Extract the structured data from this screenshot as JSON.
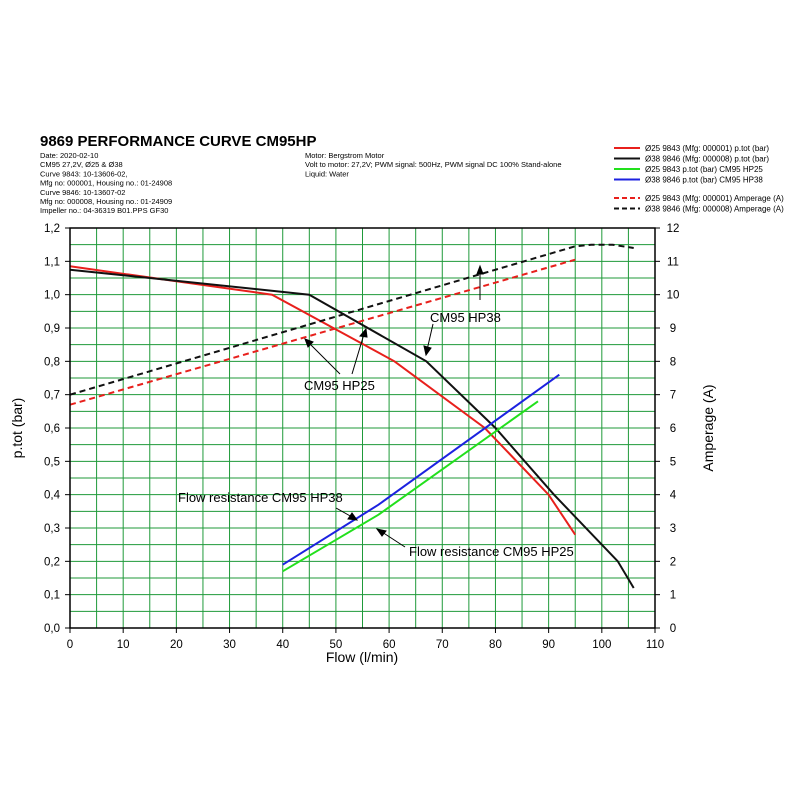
{
  "chart_data": {
    "type": "line",
    "title": "9869 PERFORMANCE CURVE CM95HP",
    "info_left": [
      "Date: 2020-02-10",
      "CM95 27,2V, Ø25 & Ø38",
      "Curve 9843: 10-13606-02,",
      "Mfg no: 000001, Housing no.: 01-24908",
      "Curve 9846: 10-13607-02",
      "Mfg no: 000008, Housing no.: 01-24909",
      "Impeller no.: 04-36319 B01.PPS GF30"
    ],
    "info_middle": [
      "Motor: Bergstrom Motor",
      "Volt to motor: 27,2V; PWM signal: 500Hz, PWM signal DC 100% Stand-alone",
      "Liquid: Water"
    ],
    "x_label": "Flow (l/min)",
    "y_label": "p.tot (bar)",
    "y2_label": "Amperage (A)",
    "xlim": [
      0,
      110
    ],
    "xticks": [
      0,
      10,
      20,
      30,
      40,
      50,
      60,
      70,
      80,
      90,
      100,
      110
    ],
    "ylim": [
      0,
      1.2
    ],
    "yticks": [
      {
        "value": 0,
        "label": "0,0"
      },
      {
        "value": 0.1,
        "label": "0,1"
      },
      {
        "value": 0.2,
        "label": "0,2"
      },
      {
        "value": 0.3,
        "label": "0,3"
      },
      {
        "value": 0.4,
        "label": "0,4"
      },
      {
        "value": 0.5,
        "label": "0,5"
      },
      {
        "value": 0.6,
        "label": "0,6"
      },
      {
        "value": 0.7,
        "label": "0,7"
      },
      {
        "value": 0.8,
        "label": "0,8"
      },
      {
        "value": 0.9,
        "label": "0,9"
      },
      {
        "value": 1.0,
        "label": "1,0"
      },
      {
        "value": 1.1,
        "label": "1,1"
      },
      {
        "value": 1.2,
        "label": "1,2"
      }
    ],
    "y2lim": [
      0,
      12
    ],
    "y2ticks": [
      0,
      1,
      2,
      3,
      4,
      5,
      6,
      7,
      8,
      9,
      10,
      11,
      12
    ],
    "grid": true,
    "grid_color": "#1f9a3a",
    "series": [
      {
        "name": "Ø25 9843 (Mfg: 000001) p.tot (bar)",
        "color": "#e8201c",
        "dash": false,
        "x": [
          0,
          38,
          61,
          78,
          90,
          95
        ],
        "values": [
          1.085,
          1.0,
          0.8,
          0.6,
          0.4,
          0.28
        ]
      },
      {
        "name": "Ø38 9846 (Mfg: 000008) p.tot (bar)",
        "color": "#111111",
        "dash": false,
        "x": [
          0,
          45,
          67,
          80,
          91,
          103,
          106
        ],
        "values": [
          1.075,
          1.0,
          0.8,
          0.6,
          0.4,
          0.2,
          0.12
        ]
      },
      {
        "name": "Ø25 9843 p.tot (bar) CM95 HP25",
        "color": "#22e01c",
        "dash": false,
        "x": [
          40,
          58,
          88
        ],
        "values": [
          0.17,
          0.34,
          0.68
        ]
      },
      {
        "name": "Ø38 9846 p.tot (bar) CM95 HP38",
        "color": "#1c22e0",
        "dash": false,
        "x": [
          40,
          58,
          92
        ],
        "values": [
          0.19,
          0.37,
          0.76
        ]
      },
      {
        "name": "Ø25 9843 (Mfg: 000001) Amperage (A)",
        "color": "#e8201c",
        "dash": true,
        "axis": "y2",
        "x": [
          0,
          95
        ],
        "values": [
          6.7,
          11.05
        ]
      },
      {
        "name": "Ø38 9846 (Mfg: 000008) Amperage (A)",
        "color": "#111111",
        "dash": true,
        "axis": "y2",
        "x": [
          0,
          95,
          98,
          102,
          106
        ],
        "values": [
          7.0,
          11.45,
          11.5,
          11.5,
          11.4
        ]
      }
    ],
    "annotations": [
      "CM95 HP38",
      "CM95 HP25",
      "Flow resistance CM95 HP38",
      "Flow resistance CM95 HP25"
    ]
  }
}
